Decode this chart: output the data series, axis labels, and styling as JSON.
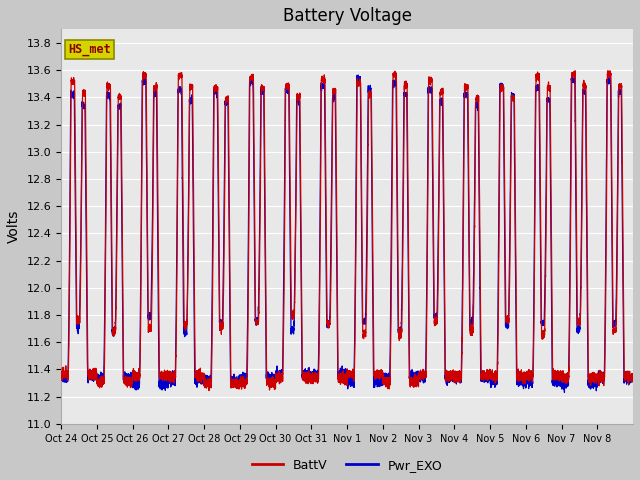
{
  "title": "Battery Voltage",
  "ylabel": "Volts",
  "ylim": [
    11.0,
    13.9
  ],
  "yticks": [
    11.0,
    11.2,
    11.4,
    11.6,
    11.8,
    12.0,
    12.2,
    12.4,
    12.6,
    12.8,
    13.0,
    13.2,
    13.4,
    13.6,
    13.8
  ],
  "xtick_labels": [
    "Oct 24",
    "Oct 25",
    "Oct 26",
    "Oct 27",
    "Oct 28",
    "Oct 29",
    "Oct 30",
    "Oct 31",
    "Nov 1",
    "Nov 2",
    "Nov 3",
    "Nov 4",
    "Nov 5",
    "Nov 6",
    "Nov 7",
    "Nov 8"
  ],
  "batt_color": "#cc0000",
  "exo_color": "#0000cc",
  "fig_bg_color": "#c8c8c8",
  "plot_bg_color": "#e8e8e8",
  "grid_color": "#ffffff",
  "legend_batt": "BattV",
  "legend_exo": "Pwr_EXO",
  "station_label": "HS_met",
  "station_label_color": "#8b0000",
  "station_box_facecolor": "#d4d400",
  "station_box_edgecolor": "#888800",
  "title_fontsize": 12,
  "axis_fontsize": 10,
  "tick_fontsize": 8,
  "legend_fontsize": 9,
  "num_days": 16,
  "linewidth": 0.9
}
